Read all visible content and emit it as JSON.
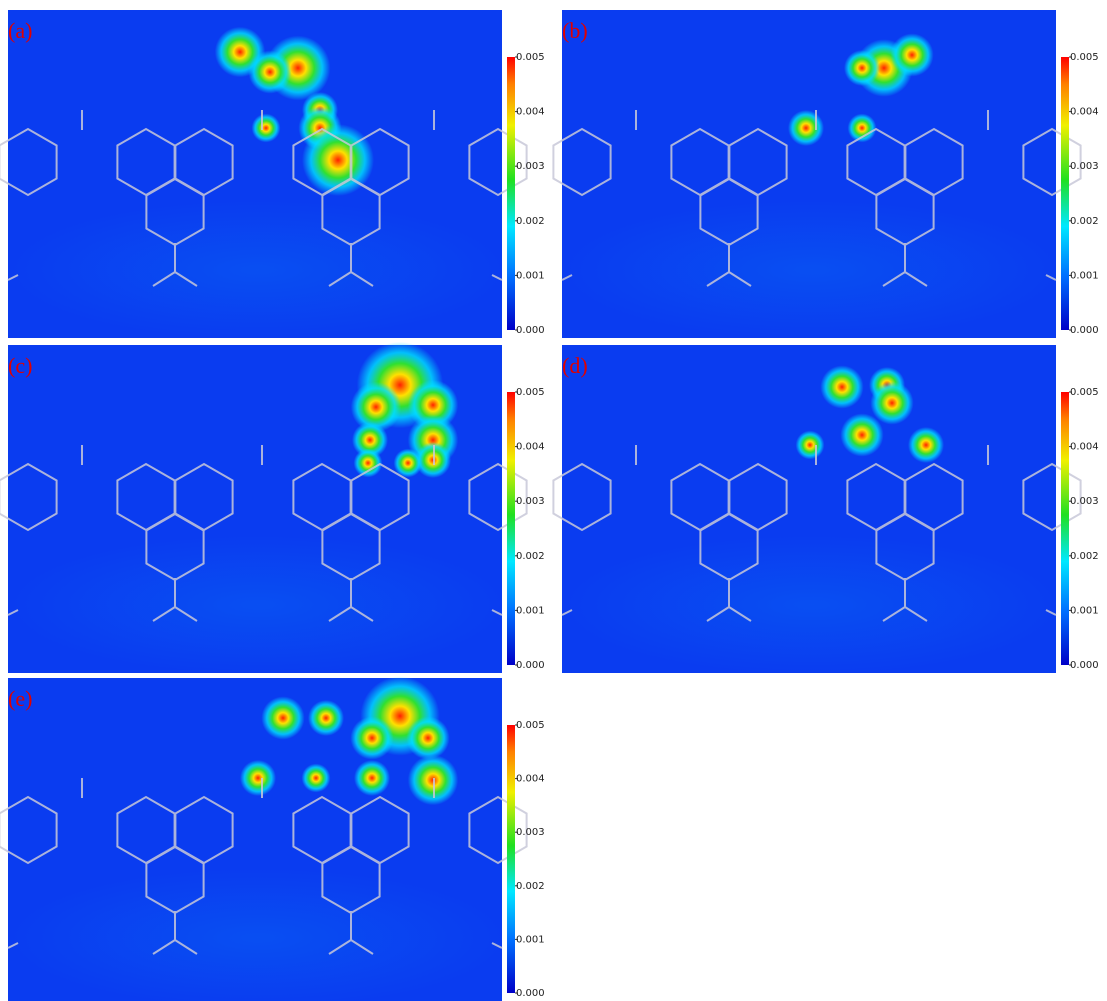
{
  "panels": [
    {
      "label": "(a)"
    },
    {
      "label": "(b)"
    },
    {
      "label": "(c)"
    },
    {
      "label": "(d)"
    },
    {
      "label": "(e)"
    }
  ],
  "colorbar": {
    "ticks": [
      "0.005",
      "0.004",
      "0.003",
      "0.002",
      "0.001",
      "0.000"
    ]
  }
}
